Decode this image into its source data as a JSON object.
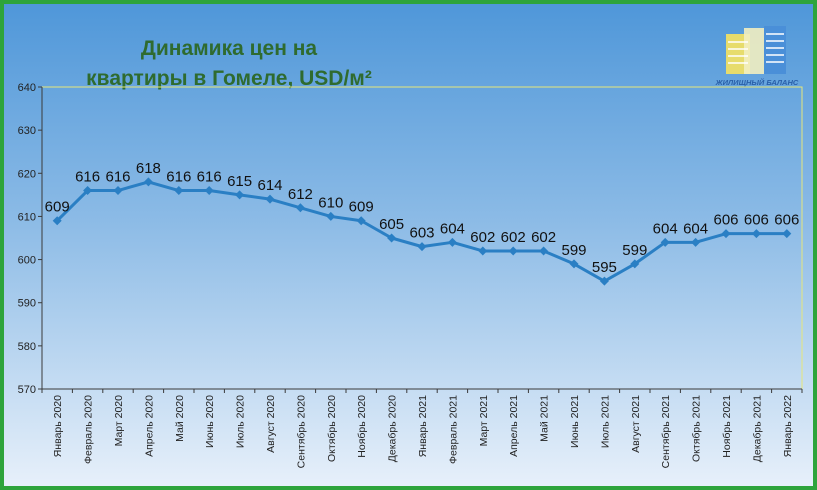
{
  "chart_data": {
    "type": "line",
    "title_line1": "Динамика цен на",
    "title_line2": "квартиры в Гомеле, USD/м²",
    "categories": [
      "Январь 2020",
      "Февраль 2020",
      "Март 2020",
      "Апрель 2020",
      "Май 2020",
      "Июнь 2020",
      "Июль 2020",
      "Август 2020",
      "Сентябрь 2020",
      "Октябрь 2020",
      "Ноябрь 2020",
      "Декабрь 2020",
      "Январь 2021",
      "Февраль 2021",
      "Март 2021",
      "Апрель 2021",
      "Май 2021",
      "Июнь 2021",
      "Июль 2021",
      "Август 2021",
      "Сентябрь 2021",
      "Октябрь 2021",
      "Ноябрь 2021",
      "Декабрь 2021",
      "Январь 2022"
    ],
    "values": [
      609,
      616,
      616,
      618,
      616,
      616,
      615,
      614,
      612,
      610,
      609,
      605,
      603,
      604,
      602,
      602,
      602,
      599,
      595,
      599,
      604,
      604,
      606,
      606,
      606
    ],
    "ylim": [
      570,
      640
    ],
    "yticks": [
      "570",
      "580",
      "590",
      "600",
      "610",
      "620",
      "630",
      "640"
    ],
    "grid": false,
    "colors": {
      "line": "#2a7fc4",
      "frame": "#2ea43b",
      "title": "#2f6b2f",
      "plot_border": "#e6e67a"
    }
  },
  "logo": {
    "text": "ЖИЛИЩНЫЙ БАЛАНС"
  }
}
